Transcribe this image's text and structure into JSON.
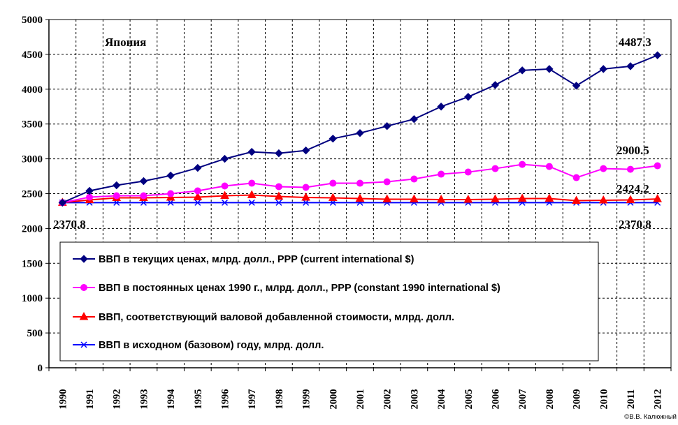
{
  "chart_data": {
    "type": "line",
    "title": "Япония",
    "xlabel": "",
    "ylabel": "",
    "ylim": [
      0,
      5000
    ],
    "yticks": [
      0,
      500,
      1000,
      1500,
      2000,
      2500,
      3000,
      3500,
      4000,
      4500,
      5000
    ],
    "categories": [
      "1990",
      "1991",
      "1992",
      "1993",
      "1994",
      "1995",
      "1996",
      "1997",
      "1998",
      "1999",
      "2000",
      "2001",
      "2002",
      "2003",
      "2004",
      "2005",
      "2006",
      "2007",
      "2008",
      "2009",
      "2010",
      "2011",
      "2012"
    ],
    "grid": true,
    "legend_position": "bottom-center",
    "series": [
      {
        "name": "ВВП в текущих ценах, млрд. долл., PPP (current international $)",
        "color": "#000080",
        "marker": "diamond",
        "values": [
          2370.8,
          2540,
          2620,
          2680,
          2760,
          2870,
          3000,
          3100,
          3080,
          3120,
          3290,
          3370,
          3470,
          3570,
          3750,
          3890,
          4060,
          4270,
          4290,
          4050,
          4290,
          4330,
          4487.3
        ]
      },
      {
        "name": "ВВП в постоянных ценах 1990 г., млрд. долл., PPP (constant 1990 international $)",
        "color": "#ff00ff",
        "marker": "circle",
        "values": [
          2370.8,
          2450,
          2470,
          2470,
          2500,
          2540,
          2610,
          2650,
          2600,
          2590,
          2650,
          2650,
          2670,
          2710,
          2780,
          2810,
          2860,
          2920,
          2890,
          2730,
          2860,
          2850,
          2900.5
        ]
      },
      {
        "name": "ВВП, соответствующий валовой  добавленной стоимости, млрд. долл.",
        "color": "#ff0000",
        "marker": "triangle",
        "values": [
          2370.8,
          2410,
          2440,
          2440,
          2445,
          2450,
          2470,
          2480,
          2460,
          2445,
          2440,
          2430,
          2420,
          2420,
          2415,
          2415,
          2420,
          2430,
          2430,
          2400,
          2405,
          2410,
          2424.2
        ]
      },
      {
        "name": "ВВП в исходном (базовом) году, млрд. долл.",
        "color": "#0000ff",
        "marker": "x",
        "values": [
          2370.8,
          2370.8,
          2370.8,
          2370.8,
          2370.8,
          2370.8,
          2370.8,
          2370.8,
          2370.8,
          2370.8,
          2370.8,
          2370.8,
          2370.8,
          2370.8,
          2370.8,
          2370.8,
          2370.8,
          2370.8,
          2370.8,
          2370.8,
          2370.8,
          2370.8,
          2370.8
        ]
      }
    ],
    "annotations": {
      "start": "2370.8",
      "end_current": "4487.3",
      "end_constant": "2900.5",
      "end_value_added": "2424.2",
      "end_base": "2370.8"
    },
    "credit": "©В.В. Калюжный"
  }
}
